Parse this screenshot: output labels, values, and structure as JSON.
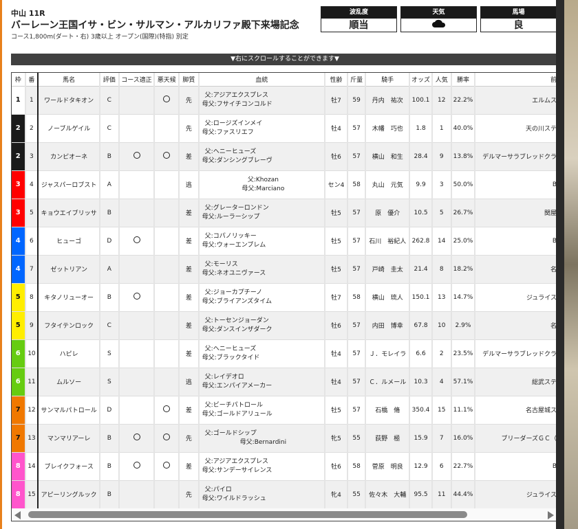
{
  "header": {
    "venue": "中山 11R",
    "title": "バーレーン王国イサ・ビン・サルマン・アルカリファ殿下来場記念",
    "conditions": "コース1,800m(ダート・右) 3歳以上 オープン(国際)(特指) 別定"
  },
  "info": [
    {
      "label": "波乱度",
      "value": "順当"
    },
    {
      "label": "天気",
      "value": "",
      "icon": "cloud-icon"
    },
    {
      "label": "馬場",
      "value": "良"
    }
  ],
  "scroll_note": "▼右にスクロールすることができます▼",
  "columns": [
    "枠",
    "番",
    "馬名",
    "評価",
    "コース適正",
    "悪天候",
    "脚質",
    "血統",
    "性齢",
    "斤量",
    "騎手",
    "オッズ",
    "人気",
    "勝率",
    "前"
  ],
  "frame_colors": {
    "1": "#ffffff",
    "2": "#1a1a1a",
    "3": "#ff0000",
    "4": "#0066ff",
    "5": "#ffee00",
    "6": "#66cc11",
    "7": "#f07800",
    "8": "#ff55cc"
  },
  "rows": [
    {
      "waku": "1",
      "ban": "1",
      "name": "ワールドタキオン",
      "rating": "C",
      "course": "",
      "weather": "○",
      "style": "先",
      "sire": "父:アジアエクスプレス",
      "dam_sire": "母父:フサイチコンコルド",
      "sex_age": "牡7",
      "weight": "59",
      "jockey": "丹内　祐次",
      "odds": "100.1",
      "pop": "12",
      "win_rate": "22.2%",
      "owner": "エルムス"
    },
    {
      "waku": "2",
      "ban": "2",
      "name": "ノーブルゲイル",
      "rating": "C",
      "course": "",
      "weather": "",
      "style": "先",
      "sire": "父:ロージズインメイ",
      "dam_sire": "母父:ファスリエフ",
      "sex_age": "牡4",
      "weight": "57",
      "jockey": "木幡　巧也",
      "odds": "1.8",
      "pop": "1",
      "win_rate": "40.0%",
      "owner": "天の川ステ"
    },
    {
      "waku": "2",
      "ban": "3",
      "name": "カンピオーネ",
      "rating": "B",
      "course": "○",
      "weather": "○",
      "style": "差",
      "sire": "父:ヘニーヒューズ",
      "dam_sire": "母父:ダンシングブレーヴ",
      "sex_age": "牡6",
      "weight": "57",
      "jockey": "横山　和生",
      "odds": "28.4",
      "pop": "9",
      "win_rate": "13.8%",
      "owner": "デルマーサラブレッドクラ"
    },
    {
      "waku": "3",
      "ban": "4",
      "name": "ジャスパーロブスト",
      "rating": "A",
      "course": "",
      "weather": "",
      "style": "逃",
      "sire": "父:Khozan",
      "dam_sire": "母父:Marciano",
      "sex_age": "セン4",
      "weight": "58",
      "jockey": "丸山　元気",
      "odds": "9.9",
      "pop": "3",
      "win_rate": "50.0%",
      "owner": "B",
      "center": true
    },
    {
      "waku": "3",
      "ban": "5",
      "name": "キョウエイブリッサ",
      "rating": "B",
      "course": "",
      "weather": "",
      "style": "差",
      "sire": "父:グレーターロンドン",
      "dam_sire": "母父:ルーラーシップ",
      "sex_age": "牡5",
      "weight": "57",
      "jockey": "原　優介",
      "odds": "10.5",
      "pop": "5",
      "win_rate": "26.7%",
      "owner": "関屋"
    },
    {
      "waku": "4",
      "ban": "6",
      "name": "ヒューゴ",
      "rating": "D",
      "course": "○",
      "weather": "",
      "style": "差",
      "sire": "父:コパノリッキー",
      "dam_sire": "母父:ウォーエンブレム",
      "sex_age": "牡5",
      "weight": "57",
      "jockey": "石川　裕紀人",
      "odds": "262.8",
      "pop": "14",
      "win_rate": "25.0%",
      "owner": "B"
    },
    {
      "waku": "4",
      "ban": "7",
      "name": "ゼットリアン",
      "rating": "A",
      "course": "",
      "weather": "",
      "style": "差",
      "sire": "父:モーリス",
      "dam_sire": "母父:ネオユニヴァース",
      "sex_age": "牡5",
      "weight": "57",
      "jockey": "戸崎　圭太",
      "odds": "21.4",
      "pop": "8",
      "win_rate": "18.2%",
      "owner": "名"
    },
    {
      "waku": "5",
      "ban": "8",
      "name": "キタノリューオー",
      "rating": "B",
      "course": "○",
      "weather": "",
      "style": "差",
      "sire": "父:ジョーカプチーノ",
      "dam_sire": "母父:ブライアンズタイム",
      "sex_age": "牡7",
      "weight": "58",
      "jockey": "横山　琉人",
      "odds": "150.1",
      "pop": "13",
      "win_rate": "14.7%",
      "owner": "ジュライス"
    },
    {
      "waku": "5",
      "ban": "9",
      "name": "フタイテンロック",
      "rating": "C",
      "course": "",
      "weather": "",
      "style": "差",
      "sire": "父:トーセンジョーダン",
      "dam_sire": "母父:ダンスインザダーク",
      "sex_age": "牡6",
      "weight": "57",
      "jockey": "内田　博幸",
      "odds": "67.8",
      "pop": "10",
      "win_rate": "2.9%",
      "owner": "名"
    },
    {
      "waku": "6",
      "ban": "10",
      "name": "ハピレ",
      "rating": "S",
      "course": "",
      "weather": "",
      "style": "差",
      "sire": "父:ヘニーヒューズ",
      "dam_sire": "母父:ブラックタイド",
      "sex_age": "牡4",
      "weight": "57",
      "jockey": "Ｊ．モレイラ",
      "odds": "6.6",
      "pop": "2",
      "win_rate": "23.5%",
      "owner": "デルマーサラブレッドクラ"
    },
    {
      "waku": "6",
      "ban": "11",
      "name": "ムルソー",
      "rating": "S",
      "course": "",
      "weather": "",
      "style": "逃",
      "sire": "父:レイデオロ",
      "dam_sire": "母父:エンパイアメーカー",
      "sex_age": "牡4",
      "weight": "57",
      "jockey": "Ｃ．ルメール",
      "odds": "10.3",
      "pop": "4",
      "win_rate": "57.1%",
      "owner": "総武ステ"
    },
    {
      "waku": "7",
      "ban": "12",
      "name": "サンマルパトロール",
      "rating": "D",
      "course": "",
      "weather": "○",
      "style": "差",
      "sire": "父:ビーチパトロール",
      "dam_sire": "母父:ゴールドアリュール",
      "sex_age": "牡5",
      "weight": "57",
      "jockey": "石橋　脩",
      "odds": "350.4",
      "pop": "15",
      "win_rate": "11.1%",
      "owner": "名古屋城ス"
    },
    {
      "waku": "7",
      "ban": "13",
      "name": "マンマリアーレ",
      "rating": "B",
      "course": "○",
      "weather": "○",
      "style": "先",
      "sire": "父:ゴールドシップ",
      "dam_sire": "母父:Bernardini",
      "sex_age": "牝5",
      "weight": "55",
      "jockey": "荻野　極",
      "odds": "15.9",
      "pop": "7",
      "win_rate": "16.0%",
      "owner": "ブリーダーズＧＣ（"
    },
    {
      "waku": "8",
      "ban": "14",
      "name": "ブレイクフォース",
      "rating": "B",
      "course": "○",
      "weather": "○",
      "style": "差",
      "sire": "父:アジアエクスプレス",
      "dam_sire": "母父:サンデーサイレンス",
      "sex_age": "牡6",
      "weight": "58",
      "jockey": "菅原　明良",
      "odds": "12.9",
      "pop": "6",
      "win_rate": "22.7%",
      "owner": "B"
    },
    {
      "waku": "8",
      "ban": "15",
      "name": "アピーリングルック",
      "rating": "B",
      "course": "",
      "weather": "",
      "style": "先",
      "sire": "父:パイロ",
      "dam_sire": "母父:ワイルドラッシュ",
      "sex_age": "牝4",
      "weight": "55",
      "jockey": "佐々木　大輔",
      "odds": "95.5",
      "pop": "11",
      "win_rate": "44.4%",
      "owner": "ジュライス"
    }
  ]
}
